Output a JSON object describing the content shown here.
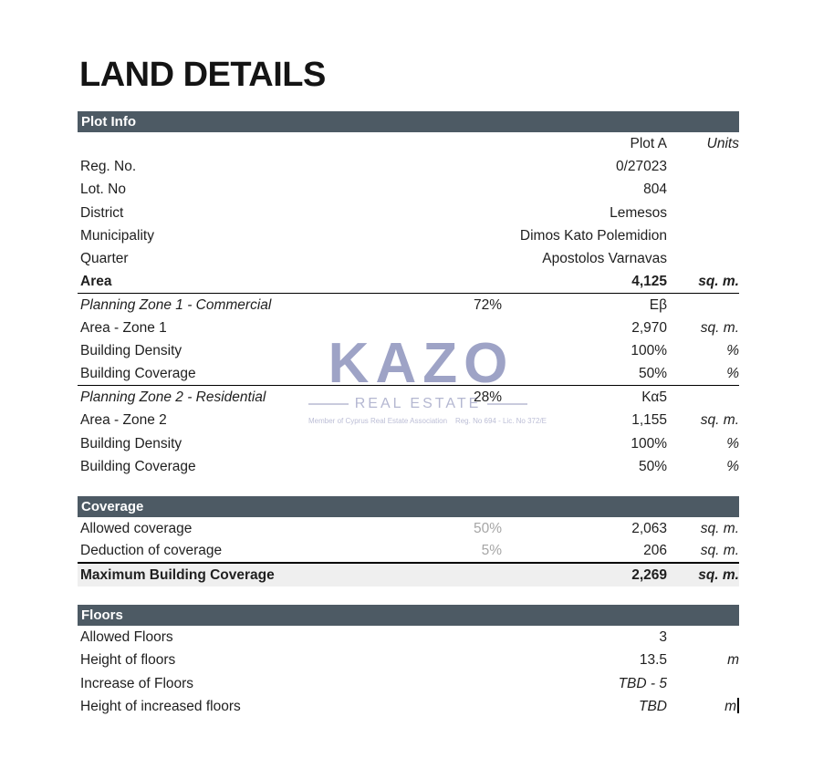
{
  "page": {
    "title": "LAND DETAILS"
  },
  "colors": {
    "section_bar": "#4d5a64",
    "highlight_row": "#efefef",
    "muted_value": "#a6a6a6",
    "watermark": "#9ea3c6",
    "text": "#1f1f1f"
  },
  "table": {
    "columns": {
      "value_header": "Plot A",
      "units_header": "Units"
    },
    "sections": [
      {
        "title": "Plot Info",
        "has_header_row": true,
        "rows": [
          {
            "label": "Reg. No.",
            "mid": "",
            "value": "0/27023",
            "unit": ""
          },
          {
            "label": "Lot. No",
            "mid": "",
            "value": "804",
            "unit": ""
          },
          {
            "label": "District",
            "mid": "",
            "value": "Lemesos",
            "unit": ""
          },
          {
            "label": "Municipality",
            "mid": "",
            "value": "Dimos Kato Polemidion",
            "unit": ""
          },
          {
            "label": "Quarter",
            "mid": "",
            "value": "Apostolos Varnavas",
            "unit": ""
          },
          {
            "label": "Area",
            "mid": "",
            "value": "4,125",
            "unit": "sq. m.",
            "bold": true,
            "rule": true
          },
          {
            "label": "Planning Zone 1 - Commercial",
            "label_italic": true,
            "mid": "72%",
            "value": "Eβ",
            "unit": ""
          },
          {
            "label": "Area - Zone 1",
            "mid": "",
            "value": "2,970",
            "unit": "sq. m."
          },
          {
            "label": "Building Density",
            "mid": "",
            "value": "100%",
            "unit": "%"
          },
          {
            "label": "Building Coverage",
            "mid": "",
            "value": "50%",
            "unit": "%",
            "rule": true
          },
          {
            "label": "Planning Zone 2 - Residential",
            "label_italic": true,
            "mid": "28%",
            "value": "Κα5",
            "unit": ""
          },
          {
            "label": "Area - Zone 2",
            "mid": "",
            "value": "1,155",
            "unit": "sq. m."
          },
          {
            "label": "Building Density",
            "mid": "",
            "value": "100%",
            "unit": "%"
          },
          {
            "label": "Building Coverage",
            "mid": "",
            "value": "50%",
            "unit": "%"
          }
        ]
      },
      {
        "title": "Coverage",
        "has_header_row": false,
        "rows": [
          {
            "label": "Allowed coverage",
            "mid": "50%",
            "mid_gray": true,
            "value": "2,063",
            "unit": "sq. m."
          },
          {
            "label": "Deduction of coverage",
            "mid": "5%",
            "mid_gray": true,
            "value": "206",
            "unit": "sq. m.",
            "rule_strong": true
          },
          {
            "label": "Maximum Building Coverage",
            "mid": "",
            "value": "2,269",
            "unit": "sq. m.",
            "bold": true,
            "highlight": true
          }
        ]
      },
      {
        "title": "Floors",
        "has_header_row": false,
        "rows": [
          {
            "label": "Allowed Floors",
            "mid": "",
            "value": "3",
            "unit": ""
          },
          {
            "label": "Height of floors",
            "mid": "",
            "value": "13.5",
            "unit": "m"
          },
          {
            "label": "Increase of Floors",
            "mid": "",
            "value": "TBD - 5",
            "value_italic": true,
            "unit": ""
          },
          {
            "label": "Height of increased floors",
            "mid": "",
            "value": "TBD",
            "value_italic": true,
            "unit": "m",
            "caret": true
          }
        ]
      }
    ]
  },
  "watermark": {
    "brand": "KAZO",
    "tagline": "REAL ESTATE",
    "footnote": "Member of Cyprus Real Estate Association    Reg. No 694 - Lic. No 372/E"
  }
}
